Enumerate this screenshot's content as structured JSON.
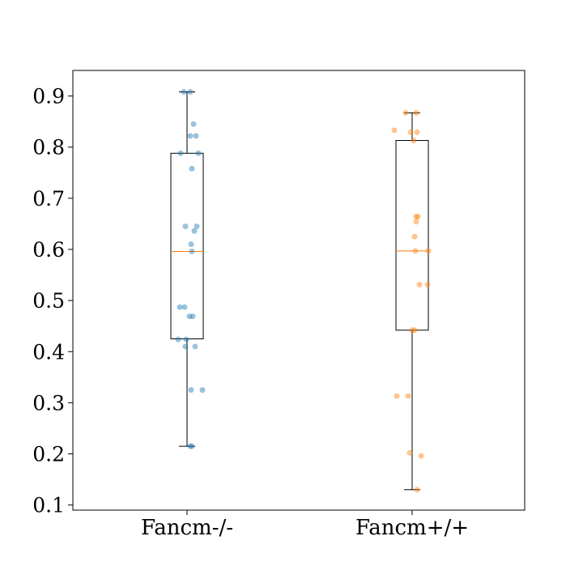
{
  "chart_data": {
    "type": "box",
    "categories": [
      "Fancm-/-",
      "Fancm+/+"
    ],
    "ylim": [
      0.09,
      0.95
    ],
    "yticks": [
      0.1,
      0.2,
      0.3,
      0.4,
      0.5,
      0.6,
      0.7,
      0.8,
      0.9
    ],
    "ytick_labels": [
      "0.1",
      "0.2",
      "0.3",
      "0.4",
      "0.5",
      "0.6",
      "0.7",
      "0.8",
      "0.9"
    ],
    "xlabel": "",
    "ylabel": "",
    "title": "",
    "grid": false,
    "series": [
      {
        "category": "Fancm-/-",
        "color": "#1f77b4",
        "box": {
          "whisker_low": 0.215,
          "q1": 0.425,
          "median": 0.596,
          "q3": 0.788,
          "whisker_high": 0.908
        },
        "points": [
          {
            "x": -0.04,
            "y": 0.908
          },
          {
            "x": 0.04,
            "y": 0.908
          },
          {
            "x": 0.08,
            "y": 0.845
          },
          {
            "x": 0.04,
            "y": 0.822
          },
          {
            "x": 0.11,
            "y": 0.822
          },
          {
            "x": -0.08,
            "y": 0.788
          },
          {
            "x": 0.14,
            "y": 0.788
          },
          {
            "x": 0.06,
            "y": 0.758
          },
          {
            "x": -0.02,
            "y": 0.645
          },
          {
            "x": 0.12,
            "y": 0.645
          },
          {
            "x": 0.09,
            "y": 0.636
          },
          {
            "x": 0.05,
            "y": 0.61
          },
          {
            "x": 0.06,
            "y": 0.596
          },
          {
            "x": -0.09,
            "y": 0.487
          },
          {
            "x": -0.03,
            "y": 0.487
          },
          {
            "x": 0.03,
            "y": 0.469
          },
          {
            "x": 0.07,
            "y": 0.469
          },
          {
            "x": -0.11,
            "y": 0.424
          },
          {
            "x": -0.01,
            "y": 0.424
          },
          {
            "x": -0.02,
            "y": 0.41
          },
          {
            "x": 0.1,
            "y": 0.41
          },
          {
            "x": 0.05,
            "y": 0.325
          },
          {
            "x": 0.19,
            "y": 0.325
          },
          {
            "x": 0.04,
            "y": 0.215
          },
          {
            "x": 0.06,
            "y": 0.215
          }
        ]
      },
      {
        "category": "Fancm+/+",
        "color": "#ff7f0e",
        "box": {
          "whisker_low": 0.13,
          "q1": 0.442,
          "median": 0.597,
          "q3": 0.813,
          "whisker_high": 0.867
        },
        "points": [
          {
            "x": -0.08,
            "y": 0.867
          },
          {
            "x": 0.05,
            "y": 0.867
          },
          {
            "x": -0.22,
            "y": 0.833
          },
          {
            "x": -0.02,
            "y": 0.829
          },
          {
            "x": 0.06,
            "y": 0.829
          },
          {
            "x": 0.02,
            "y": 0.813
          },
          {
            "x": 0.05,
            "y": 0.664
          },
          {
            "x": 0.07,
            "y": 0.664
          },
          {
            "x": 0.05,
            "y": 0.654
          },
          {
            "x": 0.03,
            "y": 0.625
          },
          {
            "x": 0.04,
            "y": 0.597
          },
          {
            "x": 0.2,
            "y": 0.597
          },
          {
            "x": 0.09,
            "y": 0.531
          },
          {
            "x": 0.19,
            "y": 0.531
          },
          {
            "x": 0.0,
            "y": 0.442
          },
          {
            "x": 0.03,
            "y": 0.442
          },
          {
            "x": -0.19,
            "y": 0.313
          },
          {
            "x": -0.05,
            "y": 0.313
          },
          {
            "x": -0.03,
            "y": 0.202
          },
          {
            "x": 0.11,
            "y": 0.196
          },
          {
            "x": 0.06,
            "y": 0.13
          }
        ]
      }
    ]
  }
}
